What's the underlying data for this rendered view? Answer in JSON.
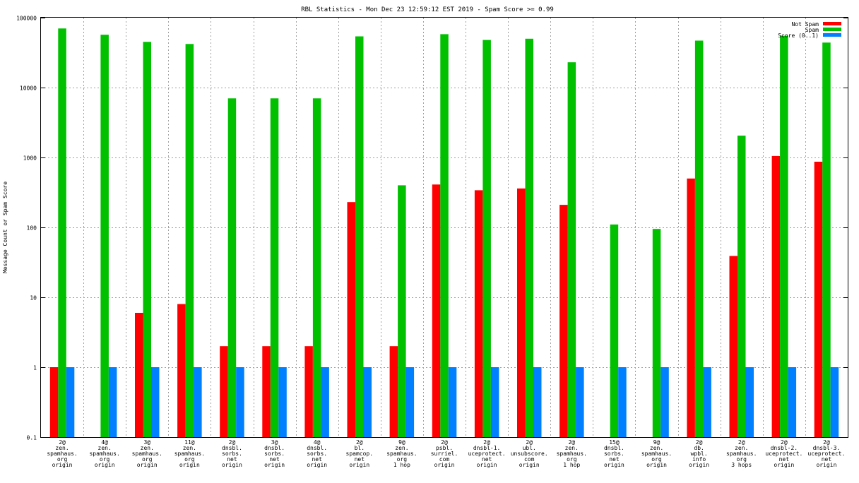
{
  "chart_data": {
    "type": "bar",
    "title": "RBL Statistics - Mon Dec 23 12:59:12 EST 2019 - Spam Score >= 0.99",
    "ylabel": "Message Count or Spam Score",
    "xlabel": "",
    "yscale": "log",
    "ylim": [
      0.1,
      100000
    ],
    "yticks": [
      "0.1",
      "1",
      "10",
      "100",
      "1000",
      "10000",
      "100000"
    ],
    "grid": true,
    "legend_position": "top-right",
    "categories": [
      [
        "2@",
        "zen.",
        "spamhaus.",
        "org",
        "origin"
      ],
      [
        "4@",
        "zen.",
        "spamhaus.",
        "org",
        "origin"
      ],
      [
        "3@",
        "zen.",
        "spamhaus.",
        "org",
        "origin"
      ],
      [
        "11@",
        "zen.",
        "spamhaus.",
        "org",
        "origin"
      ],
      [
        "2@",
        "dnsbl.",
        "sorbs.",
        "net",
        "origin"
      ],
      [
        "3@",
        "dnsbl.",
        "sorbs.",
        "net",
        "origin"
      ],
      [
        "4@",
        "dnsbl.",
        "sorbs.",
        "net",
        "origin"
      ],
      [
        "2@",
        "bl.",
        "spamcop.",
        "net",
        "origin"
      ],
      [
        "9@",
        "zen.",
        "spamhaus.",
        "org",
        "1 hop"
      ],
      [
        "2@",
        "psbl.",
        "surriel.",
        "com",
        "origin"
      ],
      [
        "2@",
        "dnsbl-1.",
        "uceprotect.",
        "net",
        "origin"
      ],
      [
        "2@",
        "ubl.",
        "unsubscore.",
        "com",
        "origin"
      ],
      [
        "2@",
        "zen.",
        "spamhaus.",
        "org",
        "1 hop"
      ],
      [
        "15@",
        "dnsbl.",
        "sorbs.",
        "net",
        "origin"
      ],
      [
        "9@",
        "zen.",
        "spamhaus.",
        "org",
        "origin"
      ],
      [
        "2@",
        "db.",
        "wpbl.",
        "info",
        "origin"
      ],
      [
        "2@",
        "zen.",
        "spamhaus.",
        "org",
        "3 hops"
      ],
      [
        "2@",
        "dnsbl-2.",
        "uceprotect.",
        "net",
        "origin"
      ],
      [
        "2@",
        "dnsbl-3.",
        "uceprotect.",
        "net",
        "origin"
      ]
    ],
    "series": [
      {
        "name": "Not Spam",
        "color": "#ff0000",
        "values": [
          1,
          null,
          6,
          8,
          2,
          2,
          2,
          230,
          2,
          410,
          340,
          360,
          210,
          null,
          null,
          500,
          39,
          1050,
          870
        ]
      },
      {
        "name": "Spam",
        "color": "#00c000",
        "values": [
          70000,
          57000,
          45000,
          42000,
          7000,
          7000,
          7000,
          54000,
          400,
          58000,
          48000,
          50000,
          23000,
          110,
          95,
          47000,
          2050,
          55000,
          44000
        ]
      },
      {
        "name": "Score (0..1)",
        "color": "#0080ff",
        "values": [
          1,
          1,
          1,
          1,
          1,
          1,
          1,
          1,
          1,
          1,
          1,
          1,
          1,
          1,
          1,
          1,
          1,
          1,
          1
        ]
      }
    ]
  }
}
